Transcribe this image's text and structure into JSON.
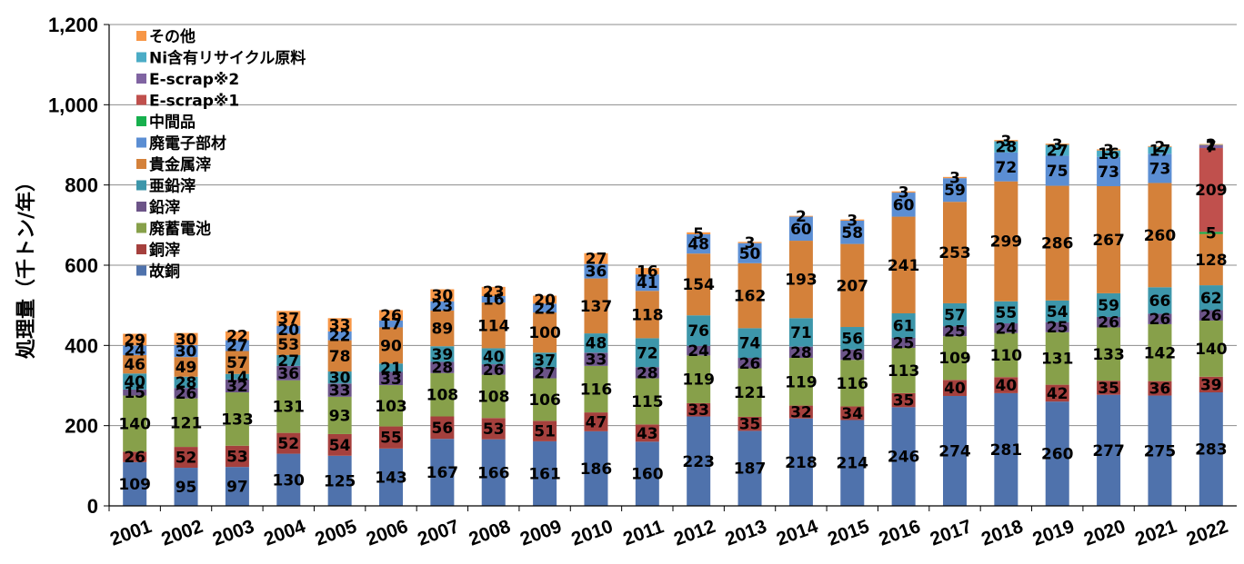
{
  "chart_data": {
    "type": "bar",
    "stacked": true,
    "ylabel": "処理量（千トン/年）",
    "ylim": [
      0,
      1200
    ],
    "yticks": [
      "0",
      "200",
      "400",
      "600",
      "800",
      "1,000",
      "1,200"
    ],
    "ytick_values": [
      0,
      200,
      400,
      600,
      800,
      1000,
      1200
    ],
    "grid": true,
    "legend_position": "top-left",
    "categories": [
      "2001",
      "2002",
      "2003",
      "2004",
      "2005",
      "2006",
      "2007",
      "2008",
      "2009",
      "2010",
      "2011",
      "2012",
      "2013",
      "2014",
      "2015",
      "2016",
      "2017",
      "2018",
      "2019",
      "2020",
      "2021",
      "2022"
    ],
    "series": [
      {
        "name": "故銅",
        "color": "#4F72AC",
        "label_color": "#000000",
        "values": [
          109,
          95,
          97,
          130,
          125,
          143,
          167,
          166,
          161,
          186,
          160,
          223,
          187,
          218,
          214,
          246,
          274,
          281,
          260,
          277,
          275,
          283
        ]
      },
      {
        "name": "銅滓",
        "color": "#A5403D",
        "label_color": "#000000",
        "values": [
          26,
          52,
          53,
          52,
          54,
          55,
          56,
          53,
          51,
          47,
          43,
          33,
          35,
          32,
          34,
          35,
          40,
          40,
          42,
          35,
          36,
          39
        ]
      },
      {
        "name": "廃蓄電池",
        "color": "#87A04A",
        "label_color": "#000000",
        "values": [
          140,
          121,
          133,
          131,
          93,
          103,
          108,
          108,
          106,
          116,
          115,
          119,
          121,
          119,
          116,
          113,
          109,
          110,
          131,
          133,
          142,
          140
        ]
      },
      {
        "name": "鉛滓",
        "color": "#6C5488",
        "label_color": "#000000",
        "values": [
          15,
          26,
          32,
          36,
          33,
          33,
          28,
          26,
          27,
          33,
          28,
          24,
          26,
          28,
          26,
          25,
          25,
          24,
          25,
          26,
          26,
          26
        ]
      },
      {
        "name": "亜鉛滓",
        "color": "#3D96AA",
        "label_color": "#000000",
        "values": [
          40,
          28,
          14,
          27,
          30,
          21,
          39,
          40,
          37,
          48,
          72,
          76,
          74,
          71,
          56,
          61,
          57,
          55,
          54,
          59,
          66,
          62
        ]
      },
      {
        "name": "貴金属滓",
        "color": "#D4813A",
        "label_color": "#000000",
        "values": [
          46,
          49,
          57,
          53,
          78,
          90,
          89,
          114,
          100,
          137,
          118,
          154,
          162,
          193,
          207,
          241,
          253,
          299,
          286,
          267,
          260,
          128
        ]
      },
      {
        "name": "廃電子部材",
        "color": "#5B8ED3",
        "label_color": "#000000",
        "values": [
          24,
          30,
          27,
          20,
          22,
          17,
          23,
          16,
          22,
          36,
          41,
          48,
          50,
          60,
          58,
          60,
          59,
          72,
          75,
          73,
          73,
          null
        ]
      },
      {
        "name": "中間品",
        "color": "#17B04E",
        "label_color": "#000000",
        "values": [
          null,
          null,
          null,
          null,
          null,
          null,
          null,
          null,
          null,
          null,
          null,
          null,
          null,
          null,
          null,
          null,
          null,
          null,
          null,
          null,
          null,
          5
        ]
      },
      {
        "name": "E-scrap※1",
        "color": "#C0504D",
        "label_color": "#000000",
        "values": [
          null,
          null,
          null,
          null,
          null,
          null,
          null,
          null,
          null,
          null,
          null,
          null,
          null,
          null,
          null,
          null,
          null,
          null,
          null,
          null,
          null,
          209
        ]
      },
      {
        "name": "E-scrap※2",
        "color": "#8064A2",
        "label_color": "#000000",
        "values": [
          null,
          null,
          null,
          null,
          null,
          null,
          null,
          null,
          null,
          null,
          null,
          null,
          null,
          null,
          null,
          null,
          null,
          null,
          null,
          null,
          null,
          7
        ]
      },
      {
        "name": "Ni含有リサイクル原料",
        "color": "#4BACC6",
        "label_color": "#000000",
        "values": [
          null,
          null,
          null,
          null,
          null,
          null,
          null,
          null,
          null,
          null,
          null,
          null,
          null,
          null,
          null,
          null,
          null,
          28,
          27,
          16,
          17,
          1
        ]
      },
      {
        "name": "その他",
        "color": "#F79646",
        "label_color": "#000000",
        "values": [
          29,
          30,
          22,
          37,
          33,
          26,
          30,
          23,
          20,
          27,
          16,
          5,
          3,
          2,
          3,
          3,
          3,
          3,
          3,
          3,
          2,
          2
        ]
      }
    ]
  }
}
